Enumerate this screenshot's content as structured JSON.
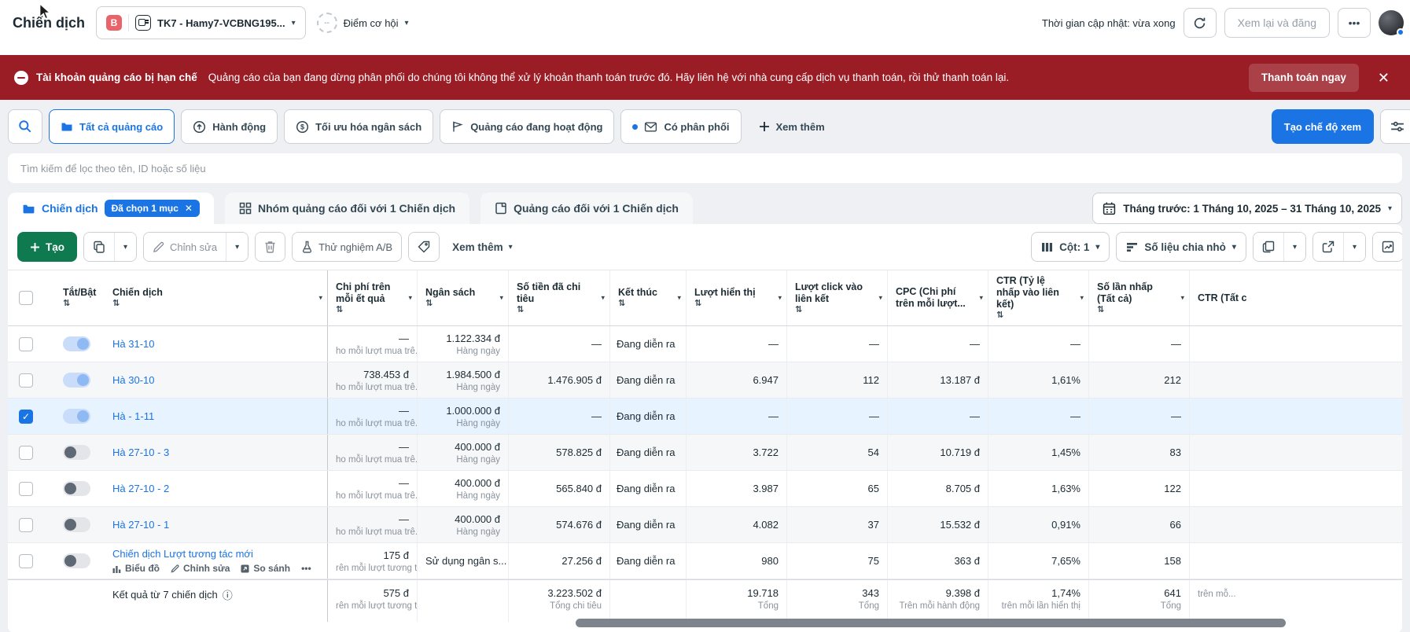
{
  "topbar": {
    "title": "Chiến dịch",
    "account_badge": "B",
    "account_name": "TK7 - Hamy7-VCBNG195...",
    "opportunity_score_value": "--",
    "opportunity_score_label": "Điểm cơ hội",
    "update_time": "Thời gian cập nhật: vừa xong",
    "review_button": "Xem lại và đăng",
    "more_button": "•••"
  },
  "banner": {
    "title": "Tài khoản quảng cáo bị hạn chế",
    "message": "Quảng cáo của bạn đang dừng phân phối do chúng tôi không thể xử lý khoản thanh toán trước đó. Hãy liên hệ với nhà cung cấp dịch vụ thanh toán, rồi thử thanh toán lại.",
    "action": "Thanh toán ngay"
  },
  "filters": {
    "chips": [
      {
        "label": "Tất cả quảng cáo",
        "icon": "folder-icon",
        "active": true
      },
      {
        "label": "Hành động",
        "icon": "arrow-up-circle-icon",
        "active": false
      },
      {
        "label": "Tối ưu hóa ngân sách",
        "icon": "dollar-circle-icon",
        "active": false
      },
      {
        "label": "Quảng cáo đang hoạt động",
        "icon": "flag-icon",
        "active": false
      },
      {
        "label": "Có phân phối",
        "icon": "envelope-icon",
        "active": false
      },
      {
        "label": "Xem thêm",
        "icon": "plus-icon",
        "active": false
      }
    ],
    "create_view_button": "Tạo chế độ xem"
  },
  "search": {
    "placeholder": "Tìm kiếm để lọc theo tên, ID hoặc số liệu"
  },
  "tabs": {
    "items": [
      {
        "label": "Chiến dịch",
        "badge": "Đã chọn 1 mục",
        "active": true
      },
      {
        "label": "Nhóm quảng cáo đối với 1 Chiến dịch",
        "badge": "",
        "active": false
      },
      {
        "label": "Quảng cáo đối với 1 Chiến dịch",
        "badge": "",
        "active": false
      }
    ],
    "date_range": "Tháng trước: 1 Tháng 10, 2025 – 31 Tháng 10, 2025"
  },
  "toolbar": {
    "create_label": "Tạo",
    "edit_label": "Chỉnh sửa",
    "ab_test_label": "Thử nghiệm A/B",
    "more_label": "Xem thêm",
    "columns_label": "Cột: 1",
    "breakdown_label": "Số liệu chia nhỏ"
  },
  "colors": {
    "accent_blue": "#1b74e4",
    "banner_red": "#9a1c25",
    "create_green": "#0f7a4f",
    "selected_row": "#e7f3ff",
    "link_blue": "#1b74e4"
  },
  "table": {
    "headers": [
      "",
      "Tắt/Bật",
      "Chiến dịch",
      "Chi phí trên mỗi ết quả",
      "Ngân sách",
      "Số tiền đã chi tiêu",
      "Kết thúc",
      "Lượt hiển thị",
      "Lượt click vào liên kết",
      "CPC (Chi phí trên mỗi lượt...",
      "CTR (Tỷ lệ nhấp vào liên kết)",
      "Số lần nhấp (Tất cả)",
      "CTR (Tất c"
    ],
    "rows": [
      {
        "name": "Hà 31-10",
        "selected": false,
        "toggle_on": true,
        "cost_per_result": "—",
        "cost_per_result_sub": "ho mỗi lượt mua trê...",
        "budget": "1.122.334 đ",
        "budget_sub": "Hàng ngày",
        "spent": "—",
        "end": "Đang diễn ra",
        "impressions": "—",
        "link_clicks": "—",
        "cpc": "—",
        "ctr_link": "—",
        "clicks_all": "—",
        "ctr_all": ""
      },
      {
        "name": "Hà 30-10",
        "selected": false,
        "toggle_on": true,
        "cost_per_result": "738.453 đ",
        "cost_per_result_sub": "ho mỗi lượt mua trê...",
        "budget": "1.984.500 đ",
        "budget_sub": "Hàng ngày",
        "spent": "1.476.905 đ",
        "end": "Đang diễn ra",
        "impressions": "6.947",
        "link_clicks": "112",
        "cpc": "13.187 đ",
        "ctr_link": "1,61%",
        "clicks_all": "212",
        "ctr_all": ""
      },
      {
        "name": "Hà - 1-11",
        "selected": true,
        "toggle_on": true,
        "cost_per_result": "—",
        "cost_per_result_sub": "ho mỗi lượt mua trê...",
        "budget": "1.000.000 đ",
        "budget_sub": "Hàng ngày",
        "spent": "—",
        "end": "Đang diễn ra",
        "impressions": "—",
        "link_clicks": "—",
        "cpc": "—",
        "ctr_link": "—",
        "clicks_all": "—",
        "ctr_all": ""
      },
      {
        "name": "Hà 27-10 - 3",
        "selected": false,
        "toggle_on": false,
        "cost_per_result": "—",
        "cost_per_result_sub": "ho mỗi lượt mua trê...",
        "budget": "400.000 đ",
        "budget_sub": "Hàng ngày",
        "spent": "578.825 đ",
        "end": "Đang diễn ra",
        "impressions": "3.722",
        "link_clicks": "54",
        "cpc": "10.719 đ",
        "ctr_link": "1,45%",
        "clicks_all": "83",
        "ctr_all": ""
      },
      {
        "name": "Hà 27-10 - 2",
        "selected": false,
        "toggle_on": false,
        "cost_per_result": "—",
        "cost_per_result_sub": "ho mỗi lượt mua trê...",
        "budget": "400.000 đ",
        "budget_sub": "Hàng ngày",
        "spent": "565.840 đ",
        "end": "Đang diễn ra",
        "impressions": "3.987",
        "link_clicks": "65",
        "cpc": "8.705 đ",
        "ctr_link": "1,63%",
        "clicks_all": "122",
        "ctr_all": ""
      },
      {
        "name": "Hà 27-10 - 1",
        "selected": false,
        "toggle_on": false,
        "cost_per_result": "—",
        "cost_per_result_sub": "ho mỗi lượt mua trê...",
        "budget": "400.000 đ",
        "budget_sub": "Hàng ngày",
        "spent": "574.676 đ",
        "end": "Đang diễn ra",
        "impressions": "4.082",
        "link_clicks": "37",
        "cpc": "15.532 đ",
        "ctr_link": "0,91%",
        "clicks_all": "66",
        "ctr_all": ""
      },
      {
        "name": "Chiến dịch Lượt tương tác mới",
        "selected": false,
        "toggle_on": false,
        "actions": [
          "Biểu đồ",
          "Chỉnh sửa",
          "So sánh"
        ],
        "cost_per_result": "175 đ",
        "cost_per_result_sub": "rên mỗi lượt tương t...",
        "budget": "Sử dụng ngân s...",
        "budget_sub": "",
        "spent": "27.256 đ",
        "end": "Đang diễn ra",
        "impressions": "980",
        "link_clicks": "75",
        "cpc": "363 đ",
        "ctr_link": "7,65%",
        "clicks_all": "158",
        "ctr_all": ""
      }
    ],
    "footer": {
      "label": "Kết quả từ 7 chiến dịch",
      "cost_per_result": "575 đ",
      "cost_per_result_sub": "rên mỗi lượt tương t...",
      "budget": "",
      "budget_sub": "",
      "spent": "3.223.502 đ",
      "spent_sub": "Tổng chi tiêu",
      "end": "",
      "impressions": "19.718",
      "impressions_sub": "Tổng",
      "link_clicks": "343",
      "link_clicks_sub": "Tổng",
      "cpc": "9.398 đ",
      "cpc_sub": "Trên mỗi hành động",
      "ctr_link": "1,74%",
      "ctr_link_sub": "trên mỗi lần hiển thị",
      "clicks_all": "641",
      "clicks_all_sub": "Tổng",
      "ctr_all": "",
      "ctr_all_sub": "trên mỗ..."
    }
  }
}
